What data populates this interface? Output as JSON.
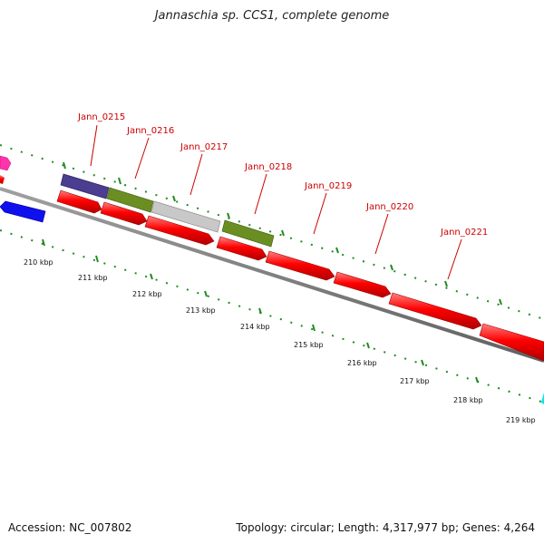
{
  "title": "Jannaschia sp. CCS1, complete genome",
  "footer": {
    "accession": "Accession: NC_007802",
    "stats": "Topology: circular; Length: 4,317,977 bp; Genes: 4,264"
  },
  "gene_labels": [
    "Jann_0215",
    "Jann_0216",
    "Jann_0217",
    "Jann_0218",
    "Jann_0219",
    "Jann_0220",
    "Jann_0221"
  ],
  "ticks": [
    "210 kbp",
    "211 kbp",
    "212 kbp",
    "213 kbp",
    "214 kbp",
    "215 kbp",
    "216 kbp",
    "217 kbp",
    "218 kbp",
    "219 kbp"
  ],
  "colors": {
    "cds": "#ff0000",
    "backbone": "#808080",
    "tick": "#228b22",
    "label": "#cc0000",
    "rna": "#0000ff",
    "pink": "#ff33aa",
    "purple": "#4b3d8f",
    "olive": "#6b8e23",
    "grey_feature": "#c8c8c8",
    "cyan": "#00e5ee"
  }
}
